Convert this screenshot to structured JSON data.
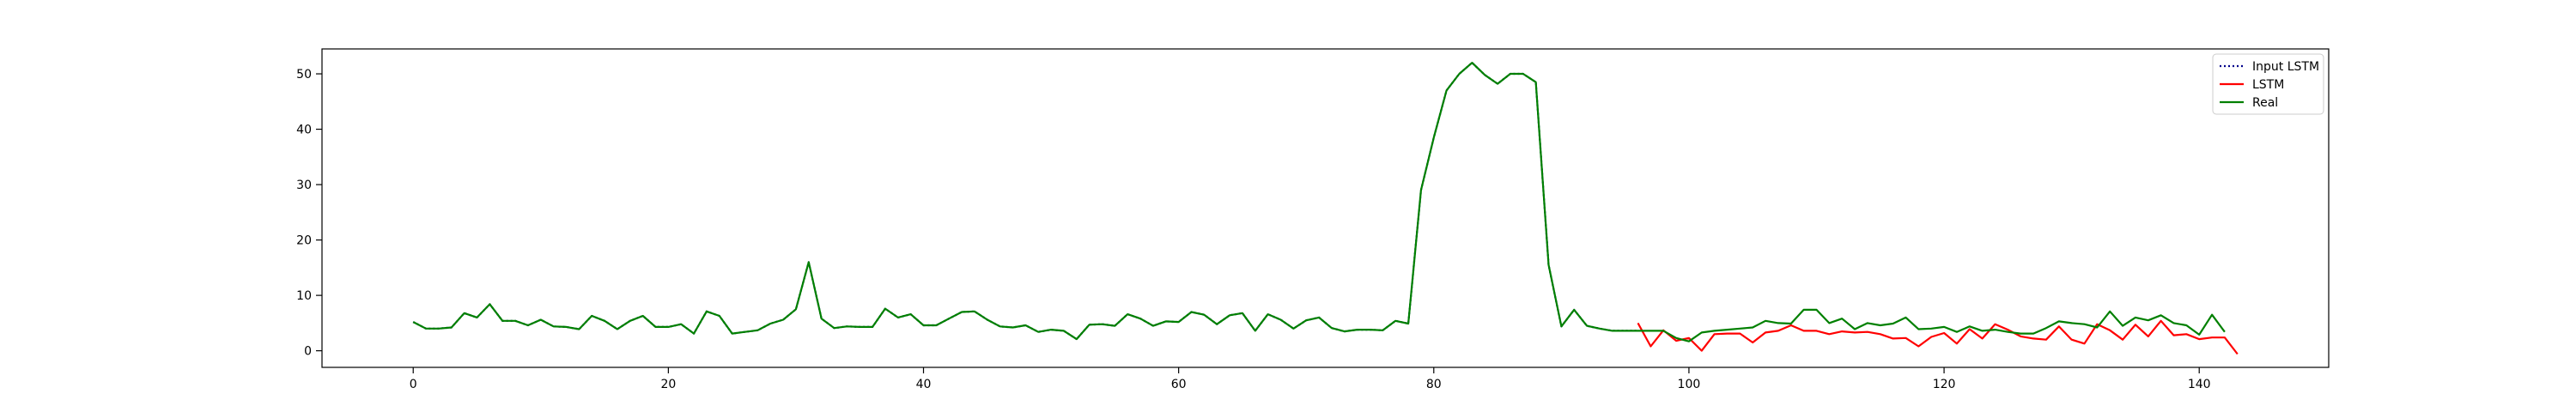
{
  "chart_data": {
    "type": "line",
    "title": "",
    "xlabel": "",
    "ylabel": "",
    "xlim": [
      -7.15,
      150.15
    ],
    "ylim": [
      -3,
      54.5
    ],
    "grid": false,
    "legend_position": "top-right",
    "xticks": [
      0,
      20,
      40,
      60,
      80,
      100,
      120,
      140
    ],
    "yticks": [
      0,
      10,
      20,
      30,
      40,
      50
    ],
    "xtick_labels": [
      "0",
      "20",
      "40",
      "60",
      "80",
      "100",
      "120",
      "140"
    ],
    "ytick_labels": [
      "0",
      "10",
      "20",
      "30",
      "40",
      "50"
    ],
    "series": [
      {
        "name": "Input LSTM",
        "color": "#00008b",
        "style": "dotted",
        "x_start": 0,
        "values": [
          5.2,
          4.0,
          4.0,
          4.2,
          6.8,
          6.0,
          8.4,
          5.4,
          5.4,
          4.6,
          5.6,
          4.4,
          4.3,
          3.9,
          6.3,
          5.4,
          3.9,
          5.4,
          6.3,
          4.3,
          4.3,
          4.8,
          3.1,
          7.1,
          6.3,
          3.1,
          3.4,
          3.7,
          4.9,
          5.6,
          7.5,
          16.0,
          5.8,
          4.1,
          4.4,
          4.3,
          4.3,
          7.6,
          6.0,
          6.6,
          4.6,
          4.6,
          5.8,
          7.0,
          7.1,
          5.6,
          4.4,
          4.2,
          4.6,
          3.4,
          3.8,
          3.6,
          2.1,
          4.7,
          4.8,
          4.5,
          6.6,
          5.8,
          4.5,
          5.3,
          5.2,
          7.0,
          6.5,
          4.8,
          6.4,
          6.8,
          3.6,
          6.6,
          5.6,
          4.0,
          5.5,
          6.0,
          4.1,
          3.5,
          3.8,
          3.8,
          3.7,
          5.4,
          4.9,
          29.0,
          38.5,
          47.0,
          50.0,
          52.0,
          49.8,
          48.2,
          50.0,
          50.0,
          48.5,
          15.5,
          4.4,
          7.4,
          4.5,
          4.0,
          3.6,
          3.6,
          3.6
        ]
      },
      {
        "name": "LSTM",
        "color": "#ff0000",
        "style": "solid",
        "x_start": 96,
        "values": [
          5.0,
          0.8,
          3.7,
          1.8,
          2.3,
          0.0,
          3.0,
          3.1,
          3.1,
          1.5,
          3.3,
          3.6,
          4.6,
          3.6,
          3.6,
          3.0,
          3.5,
          3.3,
          3.4,
          3.0,
          2.2,
          2.3,
          0.8,
          2.5,
          3.2,
          1.3,
          3.9,
          2.2,
          4.8,
          3.8,
          2.6,
          2.2,
          2.0,
          4.4,
          2.0,
          1.3,
          4.8,
          3.7,
          2.0,
          4.7,
          2.6,
          5.4,
          2.8,
          3.0,
          2.1,
          2.4,
          2.4,
          -0.6
        ]
      },
      {
        "name": "Real",
        "color": "#008000",
        "style": "solid",
        "x_start": 0,
        "values": [
          5.2,
          4.0,
          4.0,
          4.2,
          6.8,
          6.0,
          8.4,
          5.4,
          5.4,
          4.6,
          5.6,
          4.4,
          4.3,
          3.9,
          6.3,
          5.4,
          3.9,
          5.4,
          6.3,
          4.3,
          4.3,
          4.8,
          3.1,
          7.1,
          6.3,
          3.1,
          3.4,
          3.7,
          4.9,
          5.6,
          7.5,
          16.0,
          5.8,
          4.1,
          4.4,
          4.3,
          4.3,
          7.6,
          6.0,
          6.6,
          4.6,
          4.6,
          5.8,
          7.0,
          7.1,
          5.6,
          4.4,
          4.2,
          4.6,
          3.4,
          3.8,
          3.6,
          2.1,
          4.7,
          4.8,
          4.5,
          6.6,
          5.8,
          4.5,
          5.3,
          5.2,
          7.0,
          6.5,
          4.8,
          6.4,
          6.8,
          3.6,
          6.6,
          5.6,
          4.0,
          5.5,
          6.0,
          4.1,
          3.5,
          3.8,
          3.8,
          3.7,
          5.4,
          4.9,
          29.0,
          38.5,
          47.0,
          50.0,
          52.0,
          49.8,
          48.2,
          50.0,
          50.0,
          48.5,
          15.5,
          4.4,
          7.4,
          4.5,
          4.0,
          3.6,
          3.6,
          3.6,
          3.6,
          3.6,
          2.3,
          1.7,
          3.3,
          3.6,
          3.8,
          4.0,
          4.2,
          5.4,
          5.0,
          4.9,
          7.4,
          7.4,
          5.0,
          5.8,
          3.9,
          5.0,
          4.6,
          4.9,
          6.0,
          3.9,
          4.0,
          4.3,
          3.4,
          4.4,
          3.6,
          3.8,
          3.4,
          3.1,
          3.1,
          4.1,
          5.3,
          5.0,
          4.8,
          4.2,
          7.1,
          4.5,
          6.0,
          5.5,
          6.4,
          5.0,
          4.6,
          2.9,
          6.5,
          3.4
        ]
      }
    ]
  }
}
